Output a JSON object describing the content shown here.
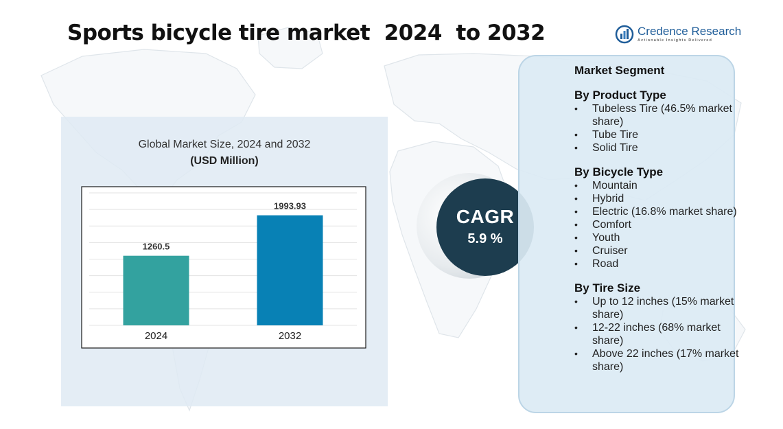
{
  "page": {
    "title": "Sports bicycle tire market  2024  to 2032"
  },
  "logo": {
    "name": "Credence Research",
    "tagline": "Actionable Insights Delivered",
    "brand_color": "#1f5d99"
  },
  "chart_data": {
    "type": "bar",
    "title": "Global Market Size, 2024 and 2032",
    "unit": "(USD Million)",
    "categories": [
      "2024",
      "2032"
    ],
    "values": [
      1260.5,
      1993.93
    ],
    "value_labels": [
      "1260.5",
      "1993.93"
    ],
    "colors": [
      "#33a29f",
      "#0881b5"
    ],
    "ylim": [
      0,
      2400
    ],
    "grid": true,
    "legend": "none"
  },
  "cagr": {
    "label": "CAGR",
    "value": "5.9 %"
  },
  "segments": {
    "heading": "Market Segment",
    "groups": [
      {
        "title": "By Product Type",
        "items": [
          "Tubeless Tire (46.5% market share)",
          "Tube Tire",
          "Solid Tire"
        ]
      },
      {
        "title": "By Bicycle Type",
        "items": [
          "Mountain",
          "Hybrid",
          "Electric (16.8% market share)",
          "Comfort",
          "Youth",
          "Cruiser",
          "Road"
        ]
      },
      {
        "title": "By Tire Size",
        "items": [
          "Up to 12 inches (15% market share)",
          "12-22 inches (68% market share)",
          "Above 22 inches (17% market share)"
        ]
      }
    ]
  }
}
